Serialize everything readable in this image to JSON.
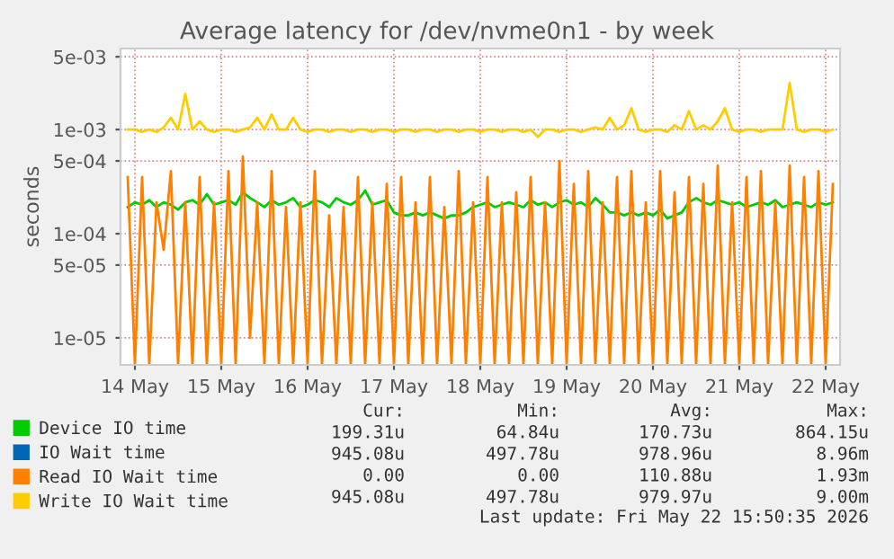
{
  "chart_data": {
    "type": "line",
    "title": "Average latency for /dev/nvme0n1 - by week",
    "ylabel": "seconds",
    "log": "y",
    "grid": true,
    "legend": "bottom",
    "marker": "none",
    "x": [
      "2026-05-13T22:00",
      "2026-05-14T00:00",
      "2026-05-14T02:00",
      "2026-05-14T04:00",
      "2026-05-14T06:00",
      "2026-05-14T08:00",
      "2026-05-14T10:00",
      "2026-05-14T12:00",
      "2026-05-14T14:00",
      "2026-05-14T16:00",
      "2026-05-14T18:00",
      "2026-05-14T20:00",
      "2026-05-14T22:00",
      "2026-05-15T00:00",
      "2026-05-15T02:00",
      "2026-05-15T04:00",
      "2026-05-15T06:00",
      "2026-05-15T08:00",
      "2026-05-15T10:00",
      "2026-05-15T12:00",
      "2026-05-15T14:00",
      "2026-05-15T16:00",
      "2026-05-15T18:00",
      "2026-05-15T20:00",
      "2026-05-15T22:00",
      "2026-05-16T00:00",
      "2026-05-16T02:00",
      "2026-05-16T04:00",
      "2026-05-16T06:00",
      "2026-05-16T08:00",
      "2026-05-16T10:00",
      "2026-05-16T12:00",
      "2026-05-16T14:00",
      "2026-05-16T16:00",
      "2026-05-16T18:00",
      "2026-05-16T20:00",
      "2026-05-16T22:00",
      "2026-05-17T00:00",
      "2026-05-17T02:00",
      "2026-05-17T04:00",
      "2026-05-17T06:00",
      "2026-05-17T08:00",
      "2026-05-17T10:00",
      "2026-05-17T12:00",
      "2026-05-17T14:00",
      "2026-05-17T16:00",
      "2026-05-17T18:00",
      "2026-05-17T20:00",
      "2026-05-17T22:00",
      "2026-05-18T00:00",
      "2026-05-18T02:00",
      "2026-05-18T04:00",
      "2026-05-18T06:00",
      "2026-05-18T08:00",
      "2026-05-18T10:00",
      "2026-05-18T12:00",
      "2026-05-18T14:00",
      "2026-05-18T16:00",
      "2026-05-18T18:00",
      "2026-05-18T20:00",
      "2026-05-18T22:00",
      "2026-05-19T00:00",
      "2026-05-19T02:00",
      "2026-05-19T04:00",
      "2026-05-19T06:00",
      "2026-05-19T08:00",
      "2026-05-19T10:00",
      "2026-05-19T12:00",
      "2026-05-19T14:00",
      "2026-05-19T16:00",
      "2026-05-19T18:00",
      "2026-05-19T20:00",
      "2026-05-19T22:00",
      "2026-05-20T00:00",
      "2026-05-20T02:00",
      "2026-05-20T04:00",
      "2026-05-20T06:00",
      "2026-05-20T08:00",
      "2026-05-20T10:00",
      "2026-05-20T12:00",
      "2026-05-20T14:00",
      "2026-05-20T16:00",
      "2026-05-20T18:00",
      "2026-05-20T20:00",
      "2026-05-20T22:00",
      "2026-05-21T00:00",
      "2026-05-21T02:00",
      "2026-05-21T04:00",
      "2026-05-21T06:00",
      "2026-05-21T08:00",
      "2026-05-21T10:00",
      "2026-05-21T12:00",
      "2026-05-21T14:00",
      "2026-05-21T16:00",
      "2026-05-21T18:00",
      "2026-05-21T20:00",
      "2026-05-21T22:00",
      "2026-05-22T00:00",
      "2026-05-22T02:00"
    ],
    "xlim": [
      "2026-05-13T20:00",
      "2026-05-22T04:00"
    ],
    "xticks": [
      {
        "value": "2026-05-14",
        "label": "14 May"
      },
      {
        "value": "2026-05-15",
        "label": "15 May"
      },
      {
        "value": "2026-05-16",
        "label": "16 May"
      },
      {
        "value": "2026-05-17",
        "label": "17 May"
      },
      {
        "value": "2026-05-18",
        "label": "18 May"
      },
      {
        "value": "2026-05-19",
        "label": "19 May"
      },
      {
        "value": "2026-05-20",
        "label": "20 May"
      },
      {
        "value": "2026-05-21",
        "label": "21 May"
      },
      {
        "value": "2026-05-22",
        "label": "22 May"
      }
    ],
    "ylim": [
      5.5e-06,
      0.006
    ],
    "yticks": [
      {
        "value": 1e-05,
        "label": "1e-05"
      },
      {
        "value": 5e-05,
        "label": "5e-05"
      },
      {
        "value": 0.0001,
        "label": "1e-04"
      },
      {
        "value": 0.0005,
        "label": "5e-04"
      },
      {
        "value": 0.001,
        "label": "1e-03"
      },
      {
        "value": 0.005,
        "label": "5e-03"
      }
    ],
    "series": [
      {
        "name": "Device IO time",
        "color": "#00cc00",
        "values": [
          0.00018,
          0.0002,
          0.00019,
          0.00021,
          0.00018,
          0.0002,
          0.00019,
          0.00017,
          0.0002,
          0.00021,
          0.00019,
          0.00024,
          0.00019,
          0.0002,
          0.00021,
          0.00019,
          0.00025,
          0.00022,
          0.0002,
          0.00018,
          0.00021,
          0.00019,
          0.0002,
          0.00022,
          0.00018,
          0.00019,
          0.00021,
          0.0002,
          0.00018,
          0.00022,
          0.0002,
          0.00019,
          0.00021,
          0.00026,
          0.00019,
          0.0002,
          0.00021,
          0.00016,
          0.00015,
          0.00015,
          0.00016,
          0.00015,
          0.00016,
          0.00015,
          0.00014,
          0.00015,
          0.00015,
          0.00016,
          0.00018,
          0.00019,
          0.0002,
          0.00018,
          0.00019,
          0.0002,
          0.00019,
          0.00018,
          0.00021,
          0.00019,
          0.0002,
          0.00018,
          0.0002,
          0.00021,
          0.00019,
          0.0002,
          0.00018,
          0.00022,
          0.00019,
          0.00016,
          0.00016,
          0.00015,
          0.00016,
          0.00015,
          0.00016,
          0.00015,
          0.00017,
          0.00014,
          0.00015,
          0.00016,
          0.0002,
          0.00022,
          0.0002,
          0.00019,
          0.00021,
          0.0002,
          0.00019,
          0.0002,
          0.00018,
          0.00019,
          0.0002,
          0.00019,
          0.00021,
          0.00018,
          0.00019,
          0.0002,
          0.00019,
          0.00018,
          0.0002,
          0.00019,
          0.0002
        ]
      },
      {
        "name": "IO Wait time",
        "color": "#0066b3",
        "values": [
          null,
          null,
          null,
          null,
          null,
          null,
          null,
          null,
          null,
          null,
          null,
          null,
          null,
          null,
          null,
          null,
          null,
          null,
          null,
          null,
          null,
          null,
          null,
          null,
          null,
          null,
          null,
          null,
          null,
          null,
          null,
          null,
          null,
          null,
          null,
          null,
          null,
          null,
          null,
          null,
          null,
          null,
          null,
          null,
          null,
          null,
          null,
          null,
          null,
          null,
          null,
          null,
          null,
          null,
          null,
          null,
          null,
          null,
          null,
          null,
          null,
          null,
          null,
          null,
          null,
          null,
          null,
          null,
          null,
          null,
          null,
          null,
          null,
          null,
          null,
          null,
          null,
          null,
          null,
          null,
          null,
          null,
          null,
          null,
          null,
          null,
          null,
          null,
          null,
          null,
          null,
          null,
          null,
          null,
          null,
          null,
          null,
          null,
          null
        ]
      },
      {
        "name": "Read IO Wait time",
        "color": "#ff8000",
        "values": [
          0.00035,
          5.6e-06,
          0.00035,
          5.6e-06,
          0.0002,
          7e-05,
          0.0004,
          5.6e-06,
          0.0002,
          5.6e-06,
          0.00035,
          5.6e-06,
          0.0002,
          5.6e-06,
          0.0004,
          5.6e-06,
          0.00055,
          1e-05,
          0.0002,
          5.6e-06,
          0.0004,
          5.6e-06,
          0.00018,
          5.6e-06,
          0.0002,
          5.6e-06,
          0.0004,
          5.6e-06,
          0.00015,
          5.6e-06,
          0.00018,
          5.6e-06,
          0.00035,
          5.6e-06,
          0.0002,
          5.6e-06,
          0.0003,
          5.6e-06,
          0.00035,
          5.6e-06,
          0.0002,
          5.6e-06,
          0.00035,
          5.6e-06,
          0.00018,
          5.6e-06,
          0.0004,
          5.6e-06,
          0.0002,
          5.6e-06,
          0.00035,
          5.6e-06,
          0.0002,
          5.6e-06,
          0.00025,
          5.6e-06,
          0.00035,
          5.6e-06,
          0.0002,
          5.6e-06,
          0.0005,
          5.6e-06,
          0.0003,
          5.6e-06,
          0.0004,
          5.6e-06,
          0.0002,
          5.6e-06,
          0.00035,
          5.6e-06,
          0.0004,
          5.6e-06,
          0.0002,
          5.6e-06,
          0.0004,
          5.6e-06,
          0.00025,
          5.6e-06,
          0.00035,
          5.6e-06,
          0.0003,
          5.6e-06,
          0.00045,
          5.6e-06,
          0.0002,
          5.6e-06,
          0.00035,
          5.6e-06,
          0.0004,
          5.6e-06,
          0.0002,
          5.6e-06,
          0.00045,
          5.6e-06,
          0.00035,
          5.6e-06,
          0.0004,
          5.6e-06,
          0.0003
        ]
      },
      {
        "name": "Write IO Wait time",
        "color": "#ffcc00",
        "values": [
          0.001,
          0.001,
          0.00095,
          0.001,
          0.00095,
          0.00105,
          0.0013,
          0.001,
          0.0022,
          0.001,
          0.0012,
          0.001,
          0.00095,
          0.001,
          0.001,
          0.00095,
          0.001,
          0.00105,
          0.0013,
          0.001,
          0.0014,
          0.001,
          0.001,
          0.0013,
          0.001,
          0.00095,
          0.001,
          0.001,
          0.00095,
          0.001,
          0.001,
          0.00095,
          0.001,
          0.001,
          0.00095,
          0.001,
          0.001,
          0.00095,
          0.001,
          0.001,
          0.00095,
          0.001,
          0.001,
          0.00095,
          0.001,
          0.001,
          0.00095,
          0.001,
          0.001,
          0.00095,
          0.001,
          0.001,
          0.00095,
          0.001,
          0.001,
          0.00095,
          0.001,
          0.00085,
          0.001,
          0.001,
          0.00095,
          0.001,
          0.001,
          0.00095,
          0.001,
          0.00105,
          0.001,
          0.0013,
          0.001,
          0.0011,
          0.0016,
          0.001,
          0.00095,
          0.001,
          0.001,
          0.00095,
          0.0011,
          0.001,
          0.0015,
          0.001,
          0.0011,
          0.001,
          0.0012,
          0.0016,
          0.001,
          0.00095,
          0.001,
          0.001,
          0.00095,
          0.001,
          0.001,
          0.001,
          0.0028,
          0.001,
          0.00095,
          0.001,
          0.001,
          0.00095,
          0.001
        ]
      }
    ],
    "annotations": [
      "Cur:",
      "Min:",
      "Avg:",
      "Max:",
      "199.31u",
      "64.84u",
      "170.73u",
      "864.15u",
      "945.08u",
      "497.78u",
      "978.96u",
      "8.96m",
      "0.00",
      "0.00",
      "110.88u",
      "1.93m",
      "945.08u",
      "497.78u",
      "979.97u",
      "9.00m",
      "Last update: Fri May 22 15:50:35 2026"
    ]
  }
}
